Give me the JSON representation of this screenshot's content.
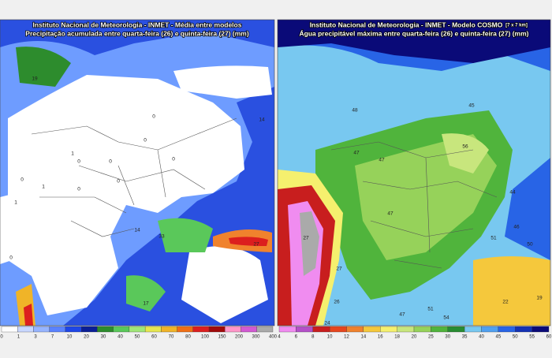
{
  "panels": [
    {
      "title": "Instituto Nacional de Meteorologia - INMET - Média entre modelos",
      "subtitle": "Precipitação acumulada entre quarta-feira (26) e quinta-feira (27) (mm)",
      "colorbar": {
        "ticks": [
          0,
          1,
          3,
          7,
          10,
          20,
          30,
          40,
          50,
          60,
          70,
          80,
          100,
          150,
          200,
          300,
          400
        ],
        "colors": [
          "#ffffff",
          "#c8d7ff",
          "#96b4ff",
          "#5a82ff",
          "#1e46e6",
          "#0a1e96",
          "#2d8c2d",
          "#5ac85a",
          "#a0e678",
          "#e6e650",
          "#f0b428",
          "#f06e14",
          "#dc1e1e",
          "#a00a0a",
          "#ff96c8",
          "#d25ad2",
          "#aaaaaa"
        ]
      },
      "map_labels": [
        "19",
        "0",
        "0",
        "0",
        "0",
        "1",
        "0",
        "0",
        "0",
        "1",
        "0",
        "1",
        "0",
        "14",
        "27",
        "14",
        "33",
        "17"
      ]
    },
    {
      "title": "Instituto Nacional de Meteorologia - INMET - Modelo COSMO",
      "title_note": "[7 x 7 km]",
      "subtitle": "Água precipitável máxima entre quarta-feira (26) e quinta-feira (27) (mm)",
      "colorbar": {
        "ticks": [
          4,
          6,
          8,
          10,
          12,
          14,
          16,
          18,
          20,
          25,
          30,
          35,
          40,
          45,
          50,
          55,
          60
        ],
        "colors": [
          "#f08cf0",
          "#b450c8",
          "#c81e1e",
          "#e6461e",
          "#f0822d",
          "#f5c83c",
          "#f5f06e",
          "#c8e67d",
          "#96d25a",
          "#50b43c",
          "#288c32",
          "#78c8f0",
          "#50a0f0",
          "#2864e6",
          "#1432b4",
          "#0a0a78"
        ]
      },
      "map_labels": [
        "48",
        "45",
        "47",
        "47",
        "56",
        "44",
        "46",
        "51",
        "50",
        "27",
        "27",
        "26",
        "24",
        "22",
        "19",
        "47",
        "51",
        "54",
        "47"
      ]
    }
  ]
}
